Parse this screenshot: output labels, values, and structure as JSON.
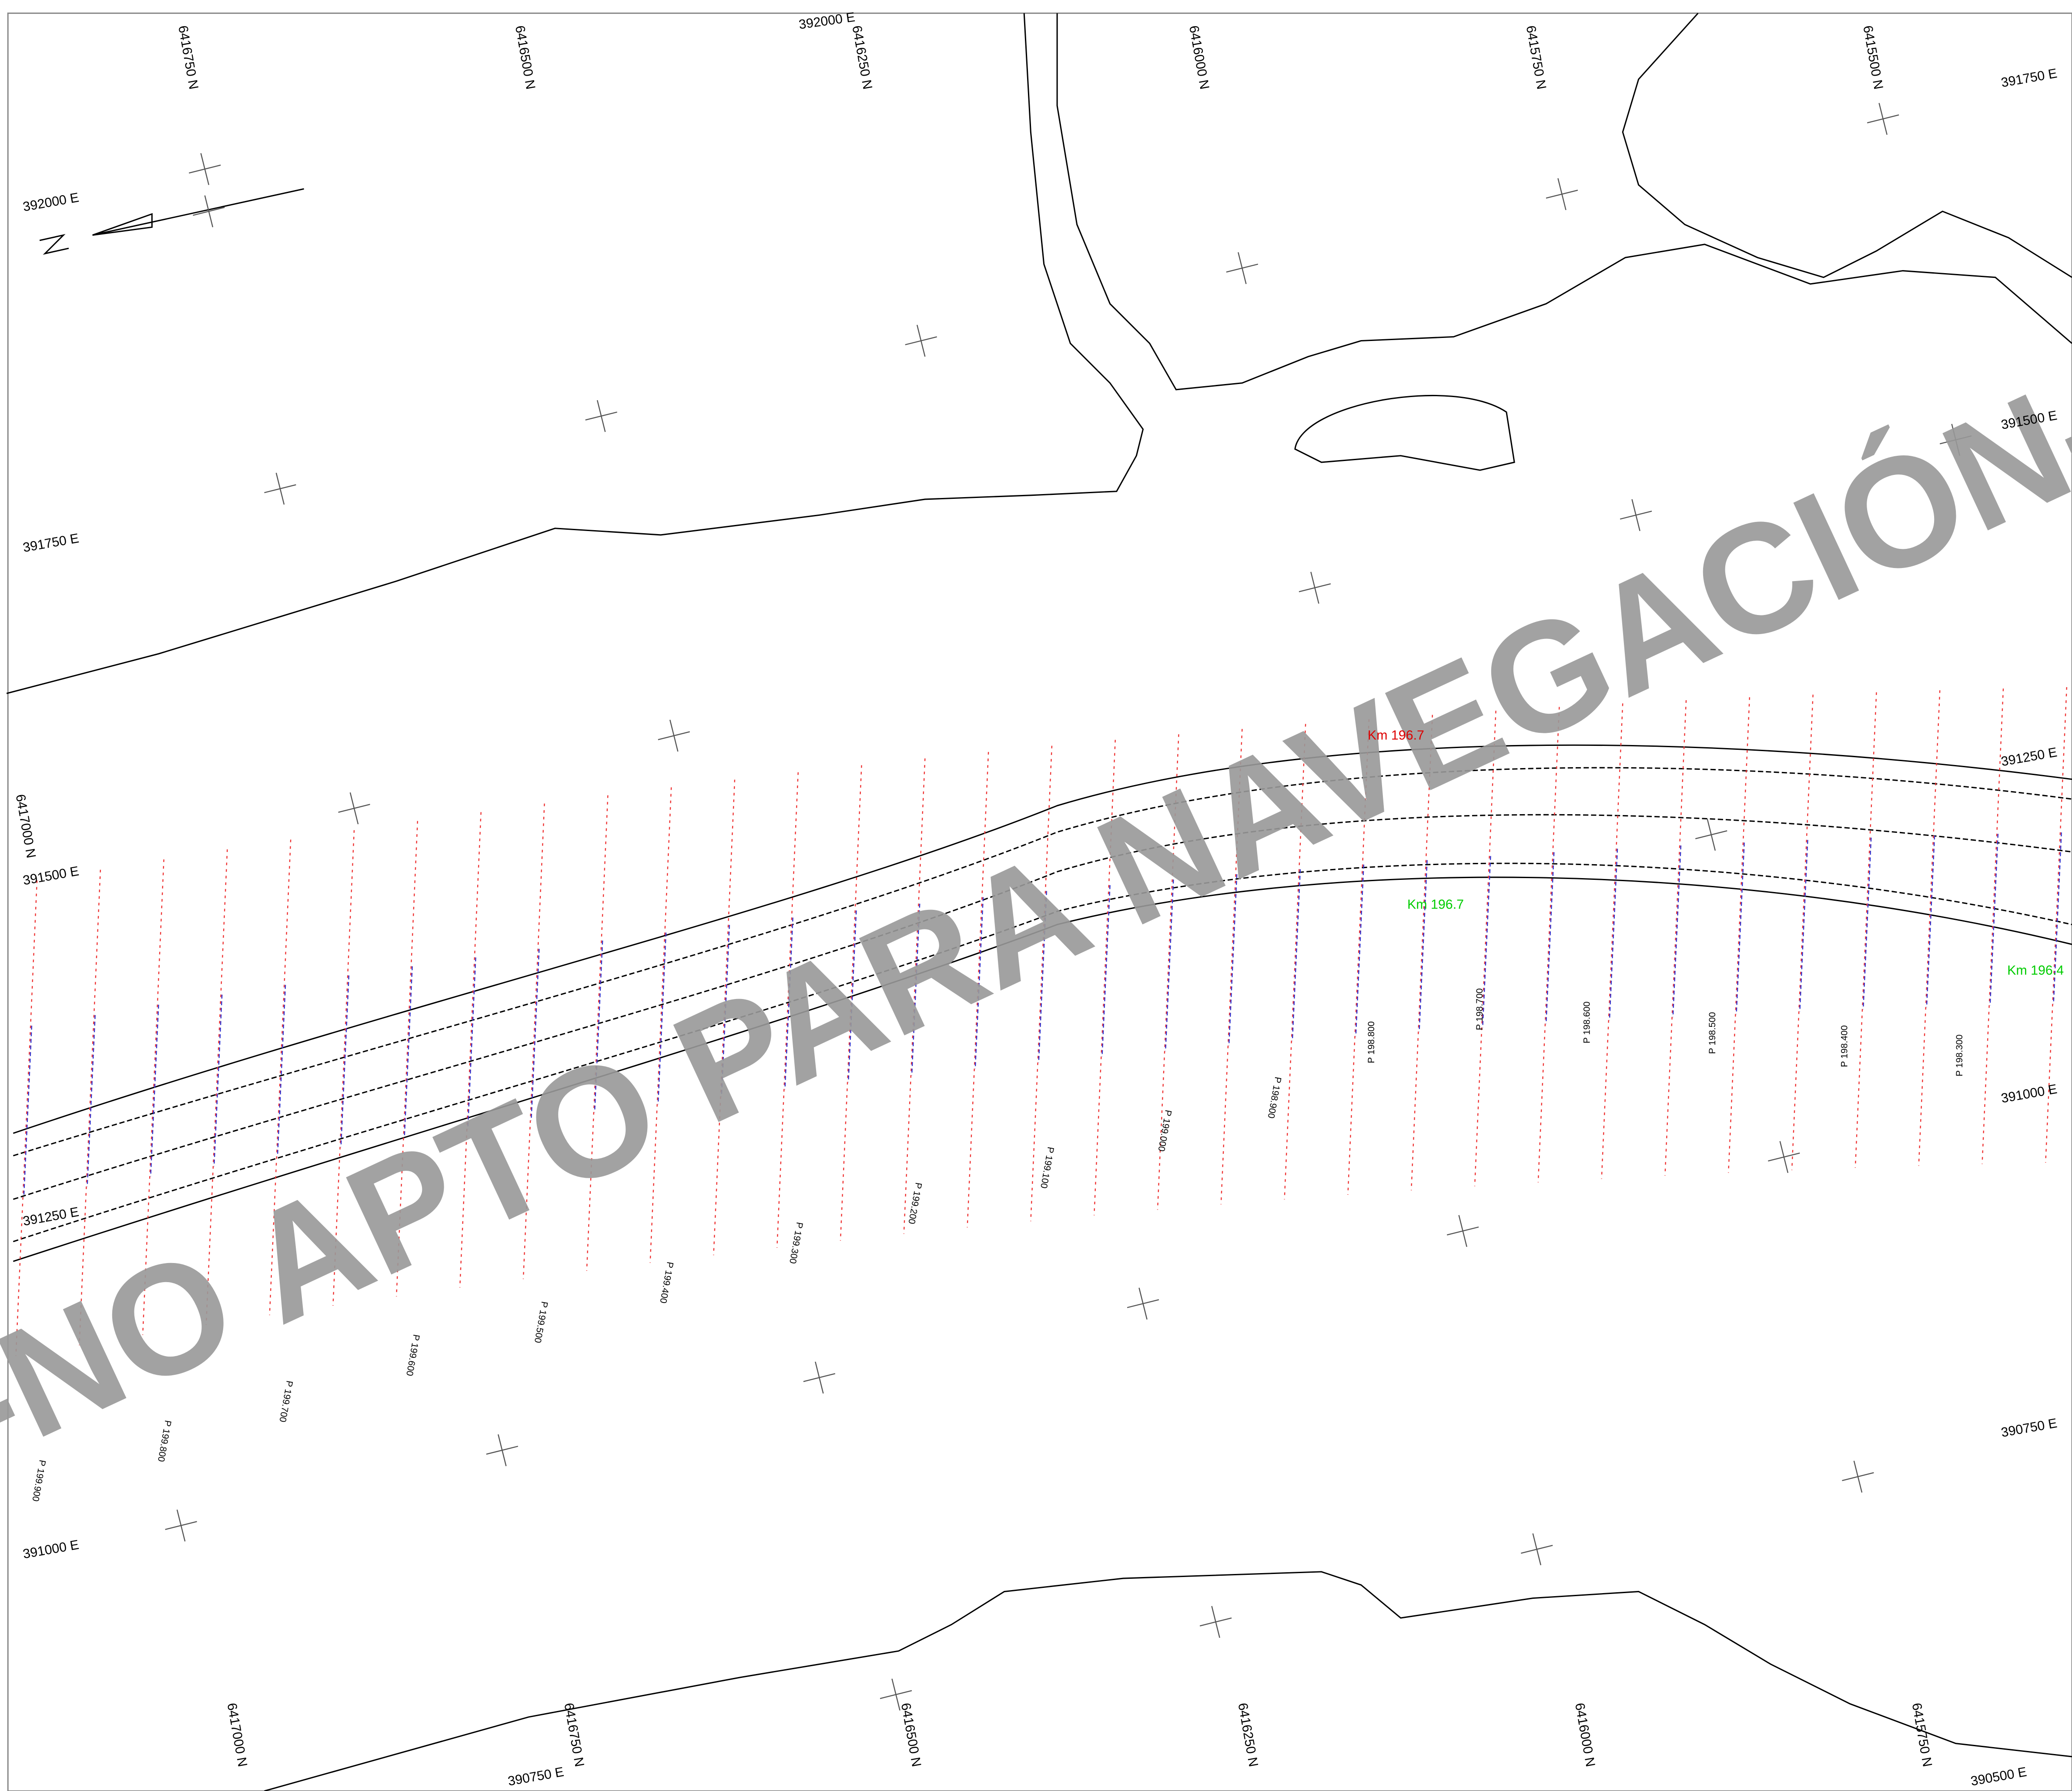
{
  "grid_labels": {
    "top": [
      "6416750 N",
      "6416500 N",
      "6416250 N",
      "6416000 N",
      "6415750 N",
      "6415500 N",
      "392000 E"
    ],
    "left": [
      "392000 E",
      "391750 E",
      "6417000 N",
      "391500 E",
      "391250 E",
      "391000 E"
    ],
    "right": [
      "391750 E",
      "391500 E",
      "391250 E",
      "391000 E",
      "390750 E",
      "390500 E"
    ],
    "bottom": [
      "6417000 N",
      "6416750 N",
      "6416500 N",
      "6416250 N",
      "6416000 N",
      "6415750 N",
      "390750 E"
    ]
  },
  "profiles": [
    "P 198.800",
    "P 198.700",
    "P 198.600",
    "P 198.500",
    "P 198.400",
    "P 198.300",
    "P 198.900",
    "P 199.000",
    "P 199.100",
    "P 199.200",
    "P 199.300",
    "P 199.400",
    "P 199.500",
    "P 199.600",
    "P 199.700",
    "P 199.800",
    "P 199.900"
  ],
  "kilometer_marks": [
    "Km 196.7",
    "Km 196.4",
    "Km 196.7"
  ],
  "watermark": "-NO APTO PARA NAVEGACIÓN-"
}
